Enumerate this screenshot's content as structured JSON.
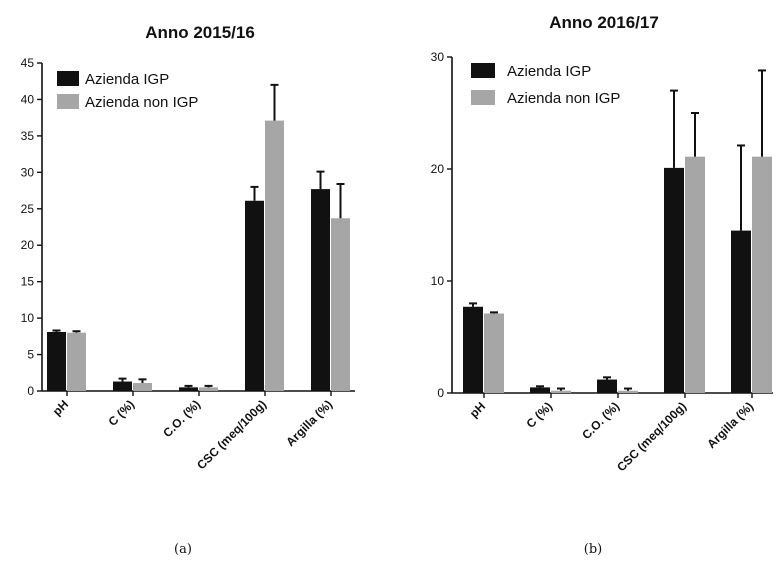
{
  "colors": {
    "series1": "#111111",
    "series2": "#a6a6a6",
    "axis": "#111111"
  },
  "chart_data": [
    {
      "type": "bar",
      "title": "Anno 2015/16",
      "caption": "(a)",
      "categories": [
        "pH",
        "C (%)",
        "C.O. (%)",
        "CSC (meq/100g)",
        "Argilla (%)"
      ],
      "ylim": [
        0,
        45
      ],
      "yticks": [
        0,
        5,
        10,
        15,
        20,
        25,
        30,
        35,
        40,
        45
      ],
      "grid": false,
      "legend_position": "top-left",
      "series": [
        {
          "name": "Azienda IGP",
          "values": [
            8.1,
            1.3,
            0.5,
            26.1,
            27.7
          ],
          "errors": [
            0.2,
            0.4,
            0.2,
            1.9,
            2.4
          ]
        },
        {
          "name": "Azienda non IGP",
          "values": [
            8.0,
            1.1,
            0.5,
            37.1,
            23.7
          ],
          "errors": [
            0.2,
            0.5,
            0.2,
            4.9,
            4.7
          ]
        }
      ]
    },
    {
      "type": "bar",
      "title": "Anno 2016/17",
      "caption": "(b)",
      "categories": [
        "pH",
        "C (%)",
        "C.O. (%)",
        "CSC (meq/100g)",
        "Argilla (%)"
      ],
      "ylim": [
        0,
        30
      ],
      "yticks": [
        0,
        10,
        20,
        30
      ],
      "grid": false,
      "legend_position": "top-left",
      "series": [
        {
          "name": "Azienda IGP",
          "values": [
            7.7,
            0.5,
            1.2,
            20.1,
            14.5
          ],
          "errors": [
            0.3,
            0.1,
            0.2,
            6.9,
            7.6
          ]
        },
        {
          "name": "Azienda non IGP",
          "values": [
            7.1,
            0.2,
            0.2,
            21.1,
            21.1
          ],
          "errors": [
            0.1,
            0.2,
            0.2,
            3.9,
            7.7
          ]
        }
      ]
    }
  ]
}
